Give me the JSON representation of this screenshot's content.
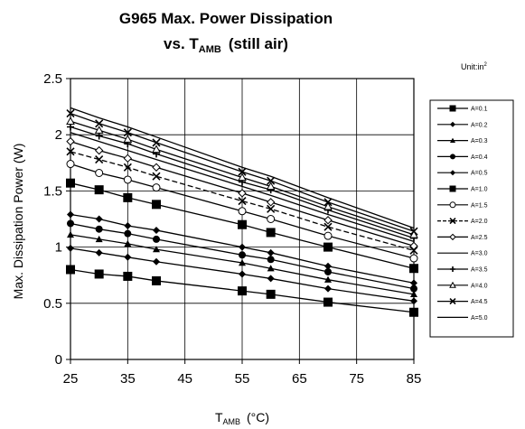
{
  "chart_data": {
    "type": "line",
    "title_line1": "G965 Max. Power Dissipation",
    "title_line2_prefix": "vs. T",
    "title_line2_sub": "AMB",
    "title_line2_suffix": "(still air)",
    "xlabel_main": "T",
    "xlabel_sub": "AMB",
    "xlabel_unit": "(°C)",
    "ylabel": "Max. Dissipation Power (W)",
    "unit_note_prefix": "Unit:in",
    "unit_note_sup": "2",
    "x": [
      25,
      30,
      35,
      40,
      55,
      60,
      70,
      85
    ],
    "xlim": [
      25,
      85
    ],
    "ylim": [
      0,
      2.5
    ],
    "xticks": [
      25,
      35,
      45,
      55,
      65,
      75,
      85
    ],
    "xtick_labels": [
      "25",
      "35",
      "45",
      "55",
      "65",
      "75",
      "85"
    ],
    "yticks": [
      0,
      0.5,
      1,
      1.5,
      2,
      2.5
    ],
    "ytick_labels": [
      "0",
      "0.5",
      "1",
      "1.5",
      "2",
      "2.5"
    ],
    "grid": true,
    "legend_position": "right",
    "series": [
      {
        "name": "A=0.1",
        "marker": "square-filled",
        "values": [
          0.8,
          0.76,
          0.74,
          0.7,
          0.61,
          0.58,
          0.51,
          0.42
        ]
      },
      {
        "name": "A=0.2",
        "marker": "diamond-filled",
        "values": [
          0.99,
          0.95,
          0.91,
          0.87,
          0.76,
          0.72,
          0.63,
          0.52
        ]
      },
      {
        "name": "A=0.3",
        "marker": "triangle-filled",
        "values": [
          1.11,
          1.07,
          1.03,
          0.98,
          0.86,
          0.81,
          0.71,
          0.58
        ]
      },
      {
        "name": "A=0.4",
        "marker": "circle-filled",
        "values": [
          1.21,
          1.16,
          1.12,
          1.07,
          0.93,
          0.89,
          0.78,
          0.63
        ]
      },
      {
        "name": "A=0.5",
        "marker": "diamond-filled",
        "values": [
          1.29,
          1.25,
          1.19,
          1.15,
          1.0,
          0.95,
          0.83,
          0.68
        ]
      },
      {
        "name": "A=1.0",
        "marker": "square-filled",
        "values": [
          1.57,
          1.51,
          1.44,
          1.38,
          1.2,
          1.13,
          1.0,
          0.81
        ]
      },
      {
        "name": "A=1.5",
        "marker": "circle-open",
        "values": [
          1.74,
          1.66,
          1.6,
          1.53,
          1.32,
          1.25,
          1.1,
          0.9
        ]
      },
      {
        "name": "A=2.0",
        "marker": "x",
        "values": [
          1.85,
          1.78,
          1.71,
          1.63,
          1.41,
          1.34,
          1.18,
          0.97
        ],
        "dashed": true
      },
      {
        "name": "A=2.5",
        "marker": "diamond-open",
        "values": [
          1.94,
          1.86,
          1.79,
          1.71,
          1.48,
          1.4,
          1.24,
          1.01
        ]
      },
      {
        "name": "A=3.0",
        "marker": "none",
        "values": [
          2.02,
          1.94,
          1.86,
          1.78,
          1.54,
          1.46,
          1.29,
          1.05
        ]
      },
      {
        "name": "A=3.5",
        "marker": "plus",
        "values": [
          2.07,
          1.99,
          1.92,
          1.83,
          1.58,
          1.51,
          1.33,
          1.08
        ]
      },
      {
        "name": "A=4.0",
        "marker": "triangle-open",
        "values": [
          2.12,
          2.04,
          1.96,
          1.87,
          1.62,
          1.54,
          1.36,
          1.11
        ]
      },
      {
        "name": "A=4.5",
        "marker": "x",
        "values": [
          2.19,
          2.1,
          2.02,
          1.93,
          1.67,
          1.59,
          1.4,
          1.14
        ]
      },
      {
        "name": "A=5.0",
        "marker": "none",
        "values": [
          2.24,
          2.15,
          2.07,
          1.98,
          1.71,
          1.63,
          1.44,
          1.17
        ]
      }
    ]
  }
}
